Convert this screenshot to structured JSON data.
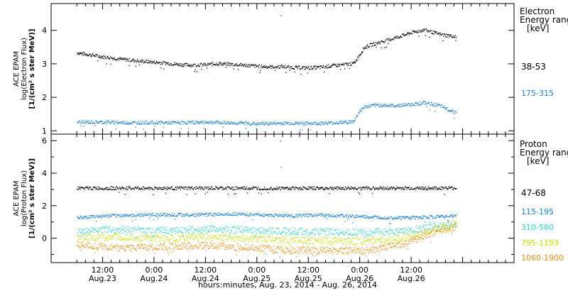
{
  "chart_data": [
    {
      "type": "scatter",
      "panel": "electron",
      "ylabel_lines": [
        "ACE EPAM",
        "log(Electron Flux)",
        "[1/(cm² s ster MeV)]"
      ],
      "ylim": [
        0.9,
        4.8
      ],
      "yticks": [
        "1",
        "2",
        "3",
        "4"
      ],
      "legend_title_lines": [
        "Electron",
        "Energy range",
        "[keV]"
      ],
      "series": [
        {
          "name": "38-53",
          "color": "#000000",
          "points": [
            [
              0,
              3.34
            ],
            [
              3,
              3.28
            ],
            [
              6,
              3.22
            ],
            [
              9,
              3.17
            ],
            [
              12,
              3.13
            ],
            [
              15,
              3.09
            ],
            [
              18,
              3.06
            ],
            [
              21,
              3.03
            ],
            [
              24,
              2.99
            ],
            [
              27,
              2.97
            ],
            [
              30,
              2.99
            ],
            [
              33,
              3.02
            ],
            [
              36,
              3.0
            ],
            [
              39,
              2.97
            ],
            [
              42,
              2.94
            ],
            [
              45,
              2.92
            ],
            [
              48,
              2.93
            ],
            [
              51,
              2.9
            ],
            [
              54,
              2.89
            ],
            [
              57,
              2.91
            ],
            [
              60,
              2.96
            ],
            [
              63,
              3.0
            ],
            [
              64.5,
              3.02
            ],
            [
              66,
              3.3
            ],
            [
              67,
              3.5
            ],
            [
              69,
              3.6
            ],
            [
              72,
              3.7
            ],
            [
              74,
              3.78
            ],
            [
              76,
              3.86
            ],
            [
              78,
              3.94
            ],
            [
              80,
              4.0
            ],
            [
              81,
              4.03
            ],
            [
              83,
              3.95
            ],
            [
              85,
              3.88
            ],
            [
              87,
              3.85
            ],
            [
              88.5,
              3.82
            ]
          ]
        },
        {
          "name": "175-315",
          "color": "#1a7fd4",
          "points": [
            [
              0,
              1.27
            ],
            [
              6,
              1.27
            ],
            [
              12,
              1.25
            ],
            [
              18,
              1.26
            ],
            [
              24,
              1.25
            ],
            [
              30,
              1.27
            ],
            [
              36,
              1.25
            ],
            [
              42,
              1.22
            ],
            [
              48,
              1.24
            ],
            [
              54,
              1.23
            ],
            [
              60,
              1.25
            ],
            [
              64.5,
              1.28
            ],
            [
              66,
              1.62
            ],
            [
              67,
              1.72
            ],
            [
              70,
              1.78
            ],
            [
              74,
              1.76
            ],
            [
              78,
              1.8
            ],
            [
              81,
              1.85
            ],
            [
              84,
              1.78
            ],
            [
              86,
              1.68
            ],
            [
              88.5,
              1.55
            ]
          ]
        }
      ],
      "spikes": [
        {
          "x": 47.5,
          "y": 4.45,
          "color": "#1a7fd4"
        }
      ]
    },
    {
      "type": "scatter",
      "panel": "proton",
      "ylabel_lines": [
        "ACE EPAM",
        "log(Proton Flux)",
        "[1/(cm² s ster MeV)]"
      ],
      "ylim": [
        -1.5,
        6.4
      ],
      "yticks": [
        "0",
        "2",
        "4",
        "6"
      ],
      "legend_title_lines": [
        "Proton",
        "Energy range",
        "[keV]"
      ],
      "series": [
        {
          "name": "47-68",
          "color": "#000000",
          "points": [
            [
              0,
              3.1
            ],
            [
              20,
              3.1
            ],
            [
              40,
              3.1
            ],
            [
              60,
              3.1
            ],
            [
              75,
              3.1
            ],
            [
              88.5,
              3.1
            ]
          ]
        },
        {
          "name": "115-195",
          "color": "#1a7fd4",
          "points": [
            [
              0,
              1.3
            ],
            [
              8,
              1.4
            ],
            [
              18,
              1.48
            ],
            [
              28,
              1.46
            ],
            [
              36,
              1.52
            ],
            [
              44,
              1.45
            ],
            [
              50,
              1.4
            ],
            [
              56,
              1.45
            ],
            [
              62,
              1.4
            ],
            [
              68,
              1.32
            ],
            [
              74,
              1.28
            ],
            [
              80,
              1.3
            ],
            [
              88.5,
              1.4
            ]
          ]
        },
        {
          "name": "310-580",
          "color": "#2fd6c8",
          "points": [
            [
              0,
              0.4
            ],
            [
              6,
              0.58
            ],
            [
              12,
              0.55
            ],
            [
              18,
              0.5
            ],
            [
              24,
              0.52
            ],
            [
              30,
              0.57
            ],
            [
              36,
              0.55
            ],
            [
              42,
              0.52
            ],
            [
              46,
              0.48
            ],
            [
              50,
              0.45
            ],
            [
              54,
              0.42
            ],
            [
              60,
              0.4
            ],
            [
              66,
              0.38
            ],
            [
              72,
              0.4
            ],
            [
              78,
              0.52
            ],
            [
              82,
              0.68
            ],
            [
              86,
              0.82
            ],
            [
              88.5,
              0.92
            ]
          ]
        },
        {
          "name": "795-1193",
          "color": "#c8e000",
          "points": [
            [
              0,
              0.0
            ],
            [
              6,
              0.1
            ],
            [
              12,
              0.05
            ],
            [
              18,
              0.0
            ],
            [
              24,
              0.02
            ],
            [
              30,
              0.1
            ],
            [
              36,
              0.05
            ],
            [
              42,
              0.0
            ],
            [
              46,
              -0.05
            ],
            [
              50,
              -0.1
            ],
            [
              56,
              -0.12
            ],
            [
              62,
              -0.15
            ],
            [
              68,
              -0.15
            ],
            [
              72,
              -0.1
            ],
            [
              76,
              0.05
            ],
            [
              80,
              0.3
            ],
            [
              84,
              0.6
            ],
            [
              88.5,
              0.9
            ]
          ]
        },
        {
          "name": "1060-1900",
          "color": "#f08c10",
          "points": [
            [
              0,
              -0.4
            ],
            [
              6,
              -0.5
            ],
            [
              12,
              -0.55
            ],
            [
              18,
              -0.5
            ],
            [
              24,
              -0.45
            ],
            [
              30,
              -0.4
            ],
            [
              36,
              -0.5
            ],
            [
              42,
              -0.6
            ],
            [
              46,
              -0.65
            ],
            [
              50,
              -0.7
            ],
            [
              56,
              -0.72
            ],
            [
              62,
              -0.75
            ],
            [
              68,
              -0.7
            ],
            [
              72,
              -0.55
            ],
            [
              76,
              -0.3
            ],
            [
              80,
              0.05
            ],
            [
              84,
              0.45
            ],
            [
              88.5,
              0.75
            ]
          ]
        }
      ],
      "spikes": [
        {
          "x": 47.5,
          "y": 6.0,
          "color": "#1a7fd4"
        },
        {
          "x": 47.5,
          "y": 4.4,
          "color": "#f08c10"
        }
      ]
    }
  ],
  "x_axis": {
    "range_hours": [
      -6,
      102
    ],
    "ticks": [
      {
        "hour": 6,
        "time": "12:00",
        "date": "Aug.23"
      },
      {
        "hour": 18,
        "time": "0:00",
        "date": "Aug.24"
      },
      {
        "hour": 30,
        "time": "12:00",
        "date": "Aug.24"
      },
      {
        "hour": 42,
        "time": "0:00",
        "date": "Aug.25"
      },
      {
        "hour": 54,
        "time": "12:00",
        "date": "Aug.25"
      },
      {
        "hour": 66,
        "time": "0:00",
        "date": "Aug.26"
      },
      {
        "hour": 78,
        "time": "12:00",
        "date": "Aug.26"
      }
    ],
    "label": "hours:minutes, Aug. 23, 2014 - Aug. 26, 2014"
  }
}
